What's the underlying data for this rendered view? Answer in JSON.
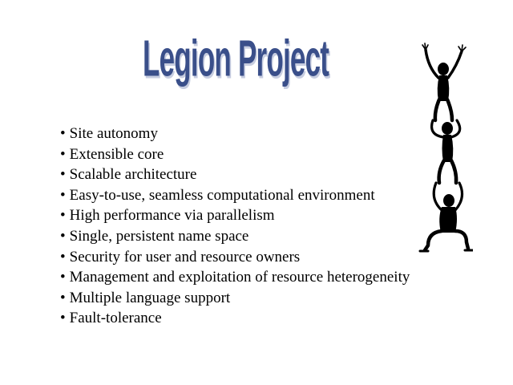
{
  "slide": {
    "title": "Legion Project",
    "bullets": [
      "Site autonomy",
      "Extensible core",
      "Scalable architecture",
      "Easy-to-use, seamless computational environment",
      "High performance via parallelism",
      "Single, persistent name space",
      "Security for user and resource owners",
      "Management and exploitation of resource heterogeneity",
      "Multiple language support",
      "Fault-tolerance"
    ],
    "illustration": {
      "icon": "stacked-acrobats-icon",
      "color": "#000000"
    },
    "colors": {
      "title": "#3a4f8a",
      "text": "#000000",
      "background": "#ffffff"
    }
  }
}
